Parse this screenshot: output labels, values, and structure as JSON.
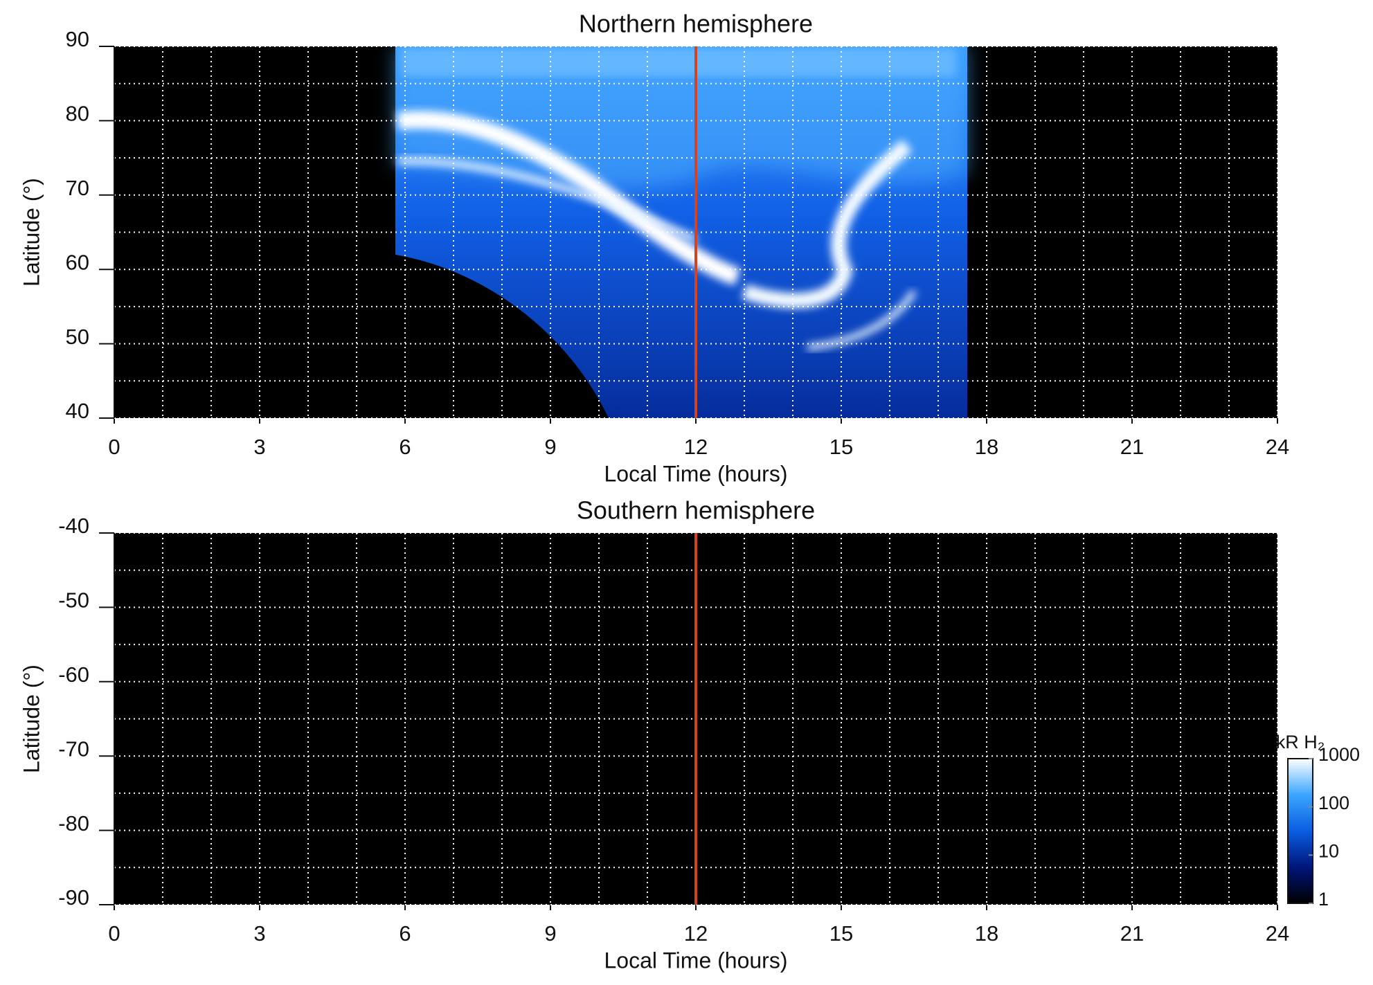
{
  "chart_data": [
    {
      "type": "heatmap",
      "title": "Northern hemisphere",
      "xlabel": "Local Time (hours)",
      "ylabel": "Latitude (°)",
      "xlim": [
        0,
        24
      ],
      "xticks": [
        0,
        3,
        6,
        9,
        12,
        15,
        18,
        21,
        24
      ],
      "ylim": [
        40,
        90
      ],
      "yticks": [
        40,
        50,
        60,
        70,
        80,
        90
      ],
      "grid": true,
      "vline": {
        "x": 12,
        "color": "#d4421e"
      }
    },
    {
      "type": "heatmap",
      "title": "Southern hemisphere",
      "xlabel": "Local Time (hours)",
      "ylabel": "Latitude (°)",
      "xlim": [
        0,
        24
      ],
      "xticks": [
        0,
        3,
        6,
        9,
        12,
        15,
        18,
        21,
        24
      ],
      "ylim": [
        -90,
        -40
      ],
      "yticks": [
        -90,
        -80,
        -70,
        -60,
        -50,
        -40
      ],
      "grid": true,
      "vline": {
        "x": 12,
        "color": "#d4421e"
      },
      "colorbar": {
        "label": "kR H₂",
        "log": true,
        "lim": [
          1,
          1000
        ],
        "ticks": [
          1,
          10,
          100,
          1000
        ],
        "colors": [
          "#000000",
          "#00157a",
          "#0a5de0",
          "#3aa6ff",
          "#ffffff"
        ]
      }
    }
  ]
}
